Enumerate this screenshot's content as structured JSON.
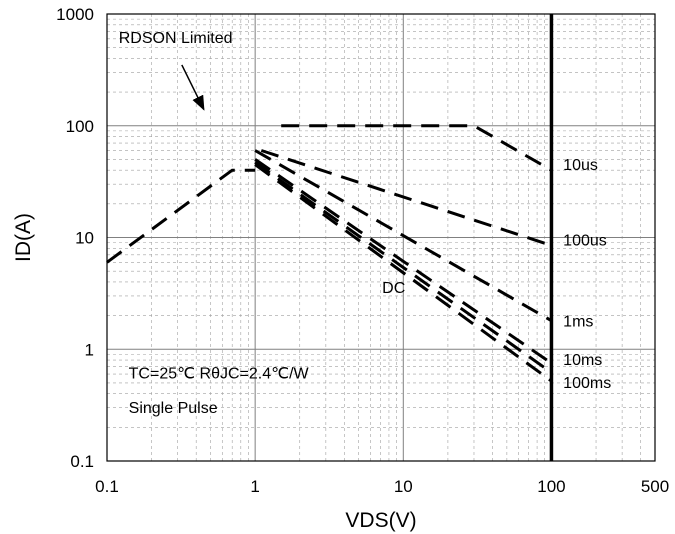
{
  "chart_data": {
    "type": "line",
    "title": "",
    "xlabel": "VDS(V)",
    "ylabel": "ID(A)",
    "x_scale": "log",
    "y_scale": "log",
    "xlim": [
      0.1,
      500
    ],
    "ylim": [
      0.1,
      1000
    ],
    "x_ticks": [
      {
        "value": 0.1,
        "label": "0.1"
      },
      {
        "value": 1,
        "label": "1"
      },
      {
        "value": 10,
        "label": "10"
      },
      {
        "value": 100,
        "label": "100"
      },
      {
        "value": 500,
        "label": "500"
      }
    ],
    "y_ticks": [
      {
        "value": 0.1,
        "label": "0.1"
      },
      {
        "value": 1,
        "label": "1"
      },
      {
        "value": 10,
        "label": "10"
      },
      {
        "value": 100,
        "label": "100"
      },
      {
        "value": 1000,
        "label": "1000"
      }
    ],
    "grid": true,
    "vertical_line": {
      "x": 100
    },
    "series": [
      {
        "name": "RDSON Limited",
        "points": [
          [
            0.1,
            6
          ],
          [
            0.7,
            40
          ],
          [
            1.0,
            40
          ]
        ]
      },
      {
        "name": "10us",
        "points": [
          [
            1.5,
            100
          ],
          [
            30,
            100
          ],
          [
            100,
            40
          ]
        ]
      },
      {
        "name": "100us",
        "points": [
          [
            1.1,
            60
          ],
          [
            100,
            8.5
          ]
        ]
      },
      {
        "name": "1ms",
        "points": [
          [
            1.0,
            60
          ],
          [
            100,
            1.8
          ]
        ]
      },
      {
        "name": "10ms",
        "points": [
          [
            1.0,
            50
          ],
          [
            100,
            0.75
          ]
        ]
      },
      {
        "name": "100ms",
        "points": [
          [
            1.0,
            47
          ],
          [
            100,
            0.62
          ]
        ]
      },
      {
        "name": "DC",
        "points": [
          [
            1.0,
            45
          ],
          [
            100,
            0.52
          ]
        ]
      }
    ],
    "annotations": [
      {
        "id": "rdson",
        "text": "RDSON Limited",
        "x": 0.12,
        "y": 550
      },
      {
        "id": "10us",
        "text": "10us",
        "x": 120,
        "y": 40
      },
      {
        "id": "100us",
        "text": "100us",
        "x": 120,
        "y": 8.5
      },
      {
        "id": "dc",
        "text": "DC",
        "x": 7.2,
        "y": 3.2
      },
      {
        "id": "1ms",
        "text": "1ms",
        "x": 120,
        "y": 1.6
      },
      {
        "id": "10ms",
        "text": "10ms",
        "x": 120,
        "y": 0.72
      },
      {
        "id": "100ms",
        "text": "100ms",
        "x": 120,
        "y": 0.45
      },
      {
        "id": "cond1",
        "text": "TC=25℃  RθJC=2.4℃/W",
        "x": 0.14,
        "y": 0.55
      },
      {
        "id": "cond2",
        "text": "Single Pulse",
        "x": 0.14,
        "y": 0.27
      }
    ],
    "arrow": {
      "from": [
        0.32,
        350
      ],
      "to": [
        0.45,
        140
      ]
    }
  }
}
